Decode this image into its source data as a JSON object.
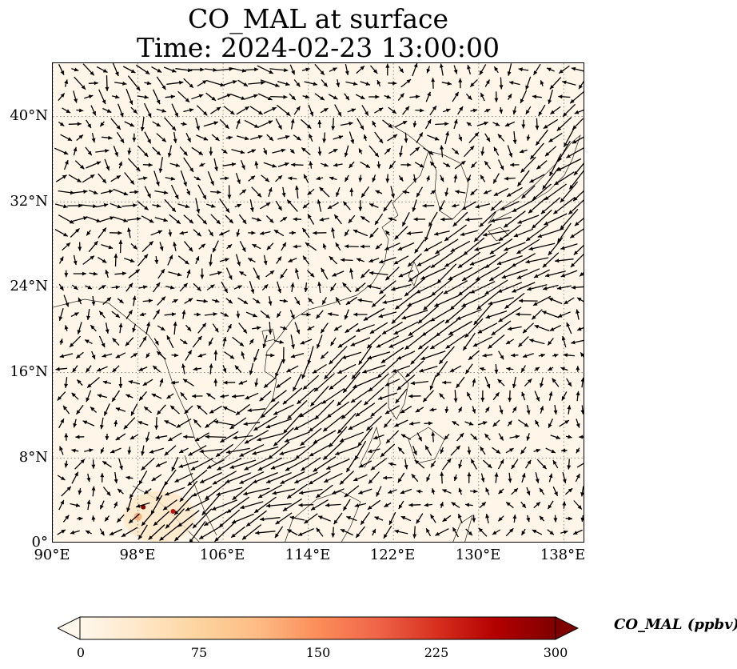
{
  "title": {
    "line1": "CO_MAL at surface",
    "line2": "Time: 2024-02-23 13:00:00"
  },
  "map": {
    "projection": "PlateCarree",
    "lon_range": [
      90,
      140
    ],
    "lat_range": [
      0,
      45
    ],
    "gridlines": "dotted",
    "lat_ticks": [
      {
        "value": 0,
        "label": "0°"
      },
      {
        "value": 8,
        "label": "8°N"
      },
      {
        "value": 16,
        "label": "16°N"
      },
      {
        "value": 24,
        "label": "24°N"
      },
      {
        "value": 32,
        "label": "32°N"
      },
      {
        "value": 40,
        "label": "40°N"
      }
    ],
    "lon_ticks": [
      {
        "value": 90,
        "label": "90°E"
      },
      {
        "value": 98,
        "label": "98°E"
      },
      {
        "value": 106,
        "label": "106°E"
      },
      {
        "value": 114,
        "label": "114°E"
      },
      {
        "value": 122,
        "label": "122°E"
      },
      {
        "value": 130,
        "label": "130°E"
      },
      {
        "value": 138,
        "label": "138°E"
      }
    ],
    "background_color": "#fff5e8",
    "vectors": "surface wind arrows (black)",
    "hotspots": [
      {
        "lon": 98.5,
        "lat": 3.4,
        "value": 300
      },
      {
        "lon": 101.3,
        "lat": 3.0,
        "value": 250
      },
      {
        "lon": 98.0,
        "lat": 2.5,
        "value": 120
      }
    ]
  },
  "colorbar": {
    "label": "CO_MAL (ppbv)",
    "min": 0,
    "max": 300,
    "extend": "both",
    "colormap": "OrRd",
    "colors": [
      "#fff7ec",
      "#fee8c8",
      "#fdd49e",
      "#fdbb84",
      "#fc8d59",
      "#ef6548",
      "#d7301f",
      "#b30000",
      "#7f0000"
    ],
    "ticks": [
      {
        "value": 0,
        "label": "0"
      },
      {
        "value": 75,
        "label": "75"
      },
      {
        "value": 150,
        "label": "150"
      },
      {
        "value": 225,
        "label": "225"
      },
      {
        "value": 300,
        "label": "300"
      }
    ]
  }
}
